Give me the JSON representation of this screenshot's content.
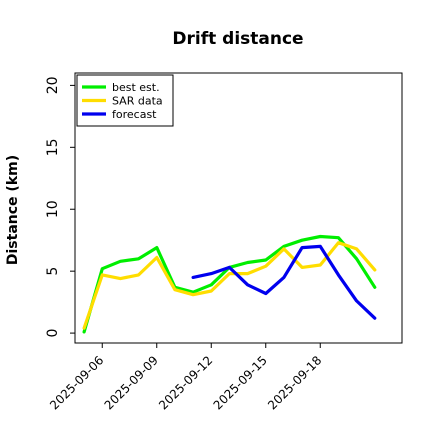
{
  "chart_data": {
    "type": "line",
    "title": "Drift distance",
    "xlabel": "",
    "ylabel": "Distance (km)",
    "ylim": [
      -0.8,
      21
    ],
    "xlim": [
      "2025-09-04T12:00",
      "2025-09-22T12:00"
    ],
    "x_ticks": [
      "2025-09-06",
      "2025-09-09",
      "2025-09-12",
      "2025-09-15",
      "2025-09-18"
    ],
    "y_ticks": [
      0,
      5,
      10,
      15,
      20
    ],
    "grid": false,
    "legend_position": "top-left",
    "series": [
      {
        "name": "best est.",
        "color": "#00ee00",
        "points": [
          [
            "2025-09-05T00:00",
            0.1
          ],
          [
            "2025-09-06T00:00",
            5.2
          ],
          [
            "2025-09-07T00:00",
            5.8
          ],
          [
            "2025-09-08T00:00",
            6.0
          ],
          [
            "2025-09-09T00:00",
            6.9
          ],
          [
            "2025-09-10T00:00",
            3.7
          ],
          [
            "2025-09-11T00:00",
            3.3
          ],
          [
            "2025-09-12T00:00",
            3.9
          ],
          [
            "2025-09-13T00:00",
            5.3
          ],
          [
            "2025-09-14T00:00",
            5.7
          ],
          [
            "2025-09-15T00:00",
            5.9
          ],
          [
            "2025-09-16T00:00",
            7.0
          ],
          [
            "2025-09-17T00:00",
            7.5
          ],
          [
            "2025-09-18T00:00",
            7.8
          ],
          [
            "2025-09-19T00:00",
            7.7
          ],
          [
            "2025-09-20T00:00",
            6.0
          ],
          [
            "2025-09-21T00:00",
            3.7
          ]
        ]
      },
      {
        "name": "SAR data",
        "color": "#ffdd00",
        "points": [
          [
            "2025-09-05T00:00",
            0.4
          ],
          [
            "2025-09-06T00:00",
            4.7
          ],
          [
            "2025-09-07T00:00",
            4.4
          ],
          [
            "2025-09-08T00:00",
            4.7
          ],
          [
            "2025-09-09T00:00",
            6.1
          ],
          [
            "2025-09-10T00:00",
            3.5
          ],
          [
            "2025-09-11T00:00",
            3.1
          ],
          [
            "2025-09-12T00:00",
            3.4
          ],
          [
            "2025-09-13T00:00",
            4.8
          ],
          [
            "2025-09-14T00:00",
            4.8
          ],
          [
            "2025-09-15T00:00",
            5.4
          ],
          [
            "2025-09-16T00:00",
            6.8
          ],
          [
            "2025-09-17T00:00",
            5.3
          ],
          [
            "2025-09-18T00:00",
            5.5
          ],
          [
            "2025-09-19T00:00",
            7.3
          ],
          [
            "2025-09-20T00:00",
            6.8
          ],
          [
            "2025-09-21T00:00",
            5.1
          ]
        ]
      },
      {
        "name": "forecast",
        "color": "#0000ee",
        "points": [
          [
            "2025-09-11T00:00",
            4.5
          ],
          [
            "2025-09-12T00:00",
            4.8
          ],
          [
            "2025-09-13T00:00",
            5.3
          ],
          [
            "2025-09-14T00:00",
            3.9
          ],
          [
            "2025-09-15T00:00",
            3.2
          ],
          [
            "2025-09-16T00:00",
            4.5
          ],
          [
            "2025-09-17T00:00",
            6.9
          ],
          [
            "2025-09-18T00:00",
            7.0
          ],
          [
            "2025-09-19T00:00",
            4.7
          ],
          [
            "2025-09-20T00:00",
            2.6
          ],
          [
            "2025-09-21T00:00",
            1.2
          ]
        ]
      }
    ]
  }
}
